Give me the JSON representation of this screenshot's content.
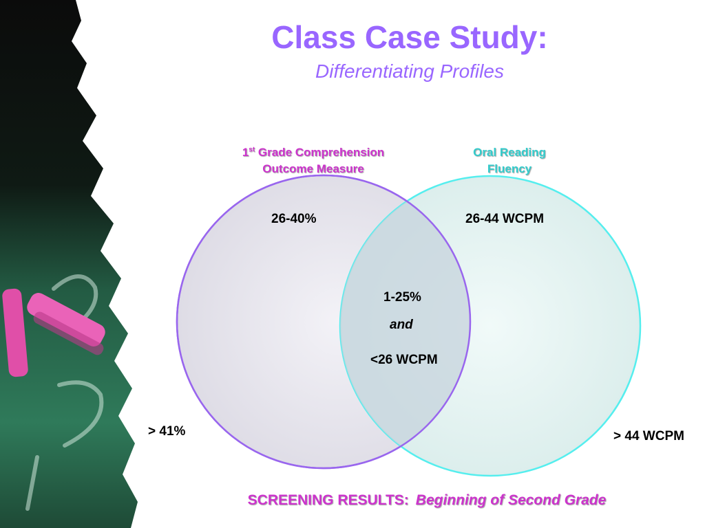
{
  "slide": {
    "title": "Class Case Study:",
    "subtitle": "Differentiating Profiles"
  },
  "venn": {
    "left_circle": {
      "label_grade": "1",
      "label_grade_sup": "st",
      "label_line1_rest": " Grade Comprehension",
      "label_line2": "Outcome Measure",
      "range": "26-40%",
      "outside": "> 41%"
    },
    "right_circle": {
      "label_line1": "Oral Reading",
      "label_line2": "Fluency",
      "range": "26-44 WCPM",
      "outside": "> 44 WCPM"
    },
    "overlap": {
      "percent": "1-25%",
      "connector": "and",
      "wcpm": "<26 WCPM"
    }
  },
  "footer": {
    "label": "SCREENING RESULTS:",
    "detail": "Beginning of Second Grade"
  },
  "colors": {
    "title": "#9966ff",
    "left_circle_stroke": "#9966ee",
    "right_circle_stroke": "#55eeee",
    "label_magenta": "#cc33cc",
    "label_teal": "#33cccc",
    "chalkboard_green": "#2f7a5a",
    "chalk_pink": "#e04fa8"
  },
  "decor": {
    "left_panel": "chalkboard-with-pink-chalk"
  }
}
